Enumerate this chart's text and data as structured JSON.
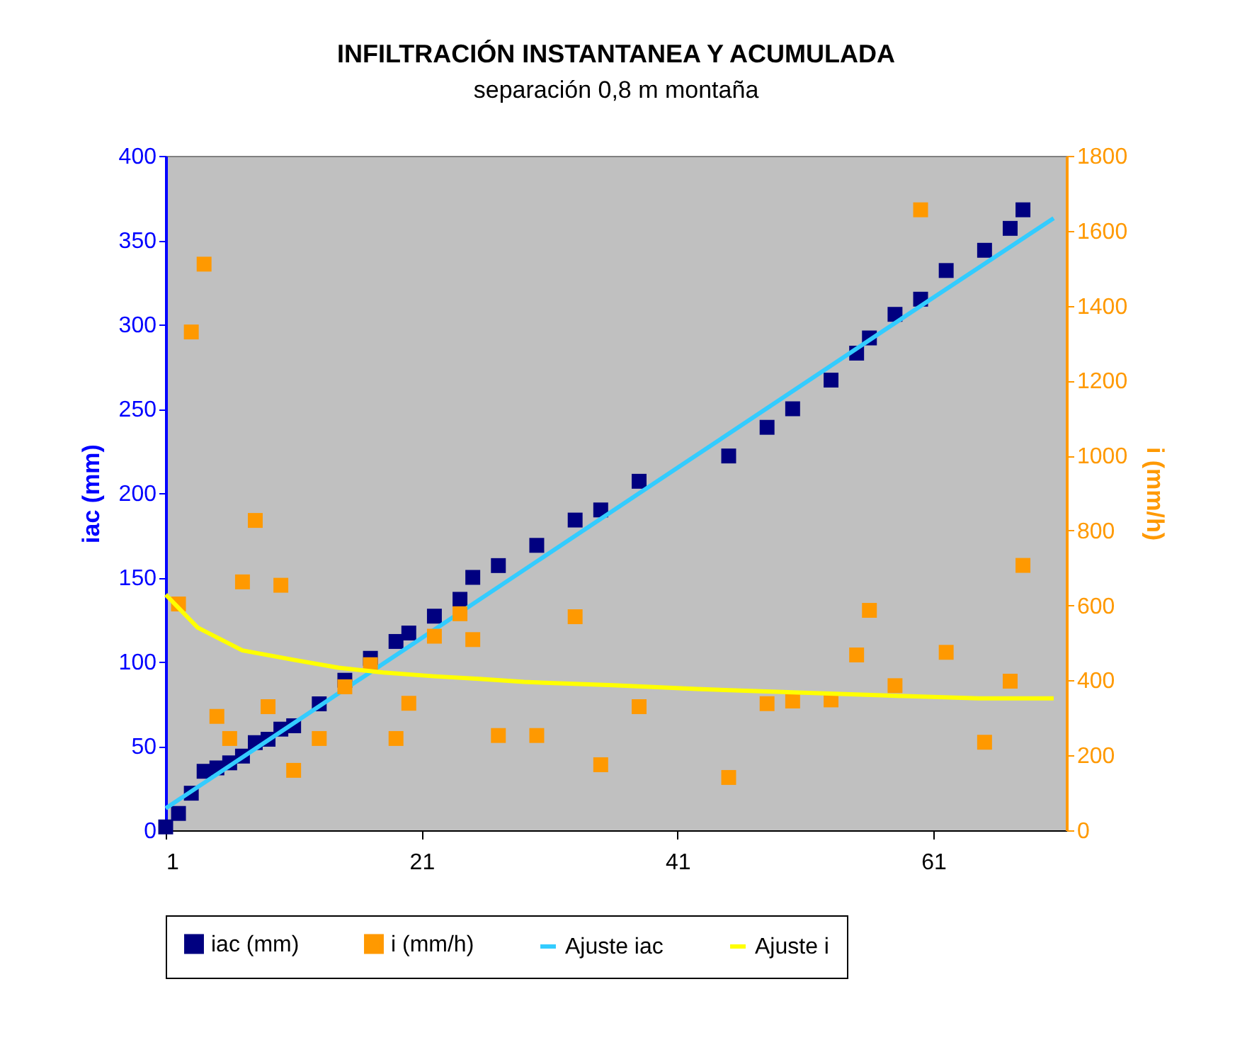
{
  "chart_data": {
    "type": "scatter",
    "title": "INFILTRACIÓN INSTANTANEA Y ACUMULADA",
    "subtitle": "separación 0,8 m montaña",
    "ylabel": "iac (mm)",
    "y2label": "i (mm/h)",
    "xlim": [
      1,
      71.4
    ],
    "xticks": [
      1,
      21,
      41,
      61
    ],
    "ylim": [
      0,
      400
    ],
    "yticks": [
      0,
      50,
      100,
      150,
      200,
      250,
      300,
      350,
      400
    ],
    "y2lim": [
      0,
      1800
    ],
    "y2ticks": [
      0,
      200,
      400,
      600,
      800,
      1000,
      1200,
      1400,
      1600,
      1800
    ],
    "grid": false,
    "legend": "bottom",
    "series": [
      {
        "name": "iac (mm)",
        "color": "#000080",
        "marker": "square",
        "x": [
          1,
          2,
          3,
          4,
          5,
          6,
          7,
          8,
          9,
          10,
          11,
          13,
          15,
          17,
          19,
          20,
          22,
          24,
          25,
          27,
          30,
          33,
          35,
          38,
          45,
          48,
          50,
          53,
          55,
          56,
          58,
          60,
          62,
          65,
          67,
          68
        ],
        "values": [
          2,
          10,
          22,
          35,
          37,
          40,
          44,
          52,
          54,
          60,
          62,
          75,
          89,
          102,
          112,
          117,
          127,
          137,
          150,
          157,
          169,
          184,
          190,
          207,
          222,
          239,
          250,
          267,
          283,
          292,
          306,
          315,
          332,
          344,
          357,
          368
        ]
      },
      {
        "name": "i (mm/h)",
        "color": "#ff9900",
        "marker": "square",
        "axis": "y2",
        "x": [
          2,
          3,
          4,
          5,
          6,
          7,
          8,
          9,
          10,
          11,
          13,
          15,
          17,
          19,
          20,
          22,
          24,
          25,
          27,
          30,
          33,
          35,
          38,
          45,
          48,
          50,
          53,
          55,
          56,
          58,
          60,
          62,
          65,
          67,
          68
        ],
        "values": [
          604,
          1330,
          1511,
          304,
          245,
          663,
          827,
          330,
          654,
          160,
          245,
          383,
          442,
          245,
          339,
          518,
          578,
          509,
          253,
          253,
          570,
          175,
          330,
          141,
          338,
          345,
          348,
          468,
          587,
          386,
          1656,
          475,
          235,
          398,
          707
        ]
      },
      {
        "name": "Ajuste iac",
        "color": "#33ccff",
        "type": "line",
        "x": [
          1,
          21,
          41,
          61,
          70.4
        ],
        "values": [
          13,
          114,
          215,
          316,
          363
        ]
      },
      {
        "name": "Ajuste i",
        "color": "#ffff00",
        "type": "line",
        "axis": "y2",
        "x": [
          1,
          3.5,
          7,
          11,
          14.5,
          18,
          22,
          25.5,
          29,
          36,
          42.5,
          50,
          57,
          64.5,
          70.4
        ],
        "values": [
          629,
          541,
          480,
          455,
          434,
          421,
          411,
          404,
          396,
          387,
          377,
          368,
          360,
          352,
          352
        ]
      }
    ]
  }
}
